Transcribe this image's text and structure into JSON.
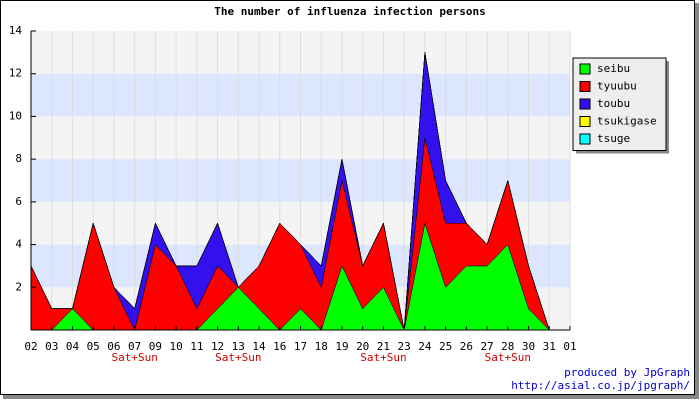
{
  "chart_data": {
    "type": "stacked_area",
    "title": "The number of influenza infection persons",
    "categories": [
      "02",
      "03",
      "04",
      "05",
      "06",
      "07",
      "09",
      "10",
      "11",
      "12",
      "13",
      "14",
      "16",
      "17",
      "18",
      "19",
      "20",
      "21",
      "23",
      "24",
      "25",
      "26",
      "27",
      "28",
      "30",
      "31",
      "01"
    ],
    "series": [
      {
        "name": "seibu",
        "color": "#00ff00",
        "values": [
          0,
          0,
          1,
          0,
          0,
          0,
          0,
          0,
          0,
          1,
          2,
          1,
          0,
          1,
          0,
          3,
          1,
          2,
          0,
          5,
          2,
          3,
          3,
          4,
          1,
          0,
          null
        ]
      },
      {
        "name": "tyuubu",
        "color": "#ff0000",
        "values": [
          3,
          1,
          0,
          5,
          2,
          0,
          4,
          3,
          1,
          2,
          0,
          2,
          5,
          3,
          2,
          4,
          2,
          3,
          0,
          4,
          3,
          2,
          1,
          3,
          2,
          0,
          null
        ]
      },
      {
        "name": "toubu",
        "color": "#3311ee",
        "values": [
          0,
          0,
          0,
          0,
          0,
          1,
          1,
          0,
          2,
          2,
          0,
          0,
          0,
          0,
          1,
          1,
          0,
          0,
          0,
          4,
          2,
          0,
          0,
          0,
          0,
          0,
          null
        ]
      },
      {
        "name": "tsukigase",
        "color": "#ffff00",
        "values": [
          0,
          0,
          0,
          0,
          0,
          0,
          0,
          0,
          0,
          0,
          0,
          0,
          0,
          0,
          0,
          0,
          0,
          0,
          0,
          0,
          0,
          0,
          0,
          0,
          0,
          0,
          null
        ]
      },
      {
        "name": "tsuge",
        "color": "#00ffff",
        "values": [
          0,
          0,
          0,
          0,
          0,
          0,
          0,
          0,
          0,
          0,
          0,
          0,
          0,
          0,
          0,
          0,
          0,
          0,
          0,
          0,
          0,
          0,
          0,
          0,
          0,
          0,
          null
        ]
      }
    ],
    "ylim": [
      0,
      14
    ],
    "yticks": [
      2,
      4,
      6,
      8,
      10,
      12,
      14
    ],
    "grid": true,
    "band_colors": [
      "#f4f4f4",
      "#dde6ff"
    ],
    "legend_position": "right",
    "annotations": [
      {
        "category": "07",
        "text": "Sat+Sun"
      },
      {
        "category": "13",
        "text": "Sat+Sun"
      },
      {
        "category": "21",
        "text": "Sat+Sun"
      },
      {
        "category": "28",
        "text": "Sat+Sun"
      }
    ],
    "footer": [
      "produced by JpGraph",
      "http://asial.co.jp/jpgraph/"
    ]
  }
}
